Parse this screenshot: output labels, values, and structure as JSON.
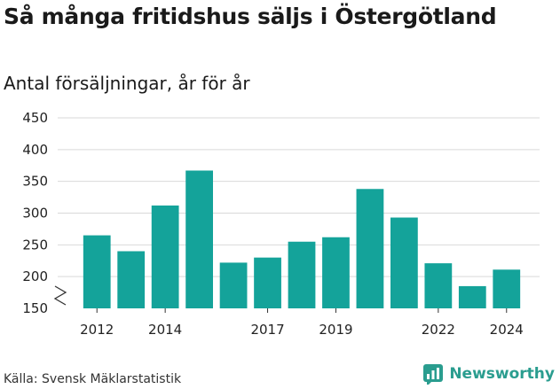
{
  "title": "Så många fritidshus säljs i Östergötland",
  "subtitle": "Antal försäljningar, år för år",
  "source": "Källa: Svensk Mäklarstatistik",
  "brand": {
    "name": "Newsworthy",
    "logo_icon": "newsworthy-chart-logo-icon",
    "color": "#2a9d8f"
  },
  "chart_data": {
    "type": "bar",
    "categories": [
      "2012",
      "2013",
      "2014",
      "2015",
      "2016",
      "2017",
      "2018",
      "2019",
      "2020",
      "2021",
      "2022",
      "2023",
      "2024"
    ],
    "values": [
      265,
      240,
      312,
      367,
      222,
      230,
      255,
      262,
      338,
      293,
      221,
      185,
      211
    ],
    "xticks": [
      "2012",
      "2014",
      "2017",
      "2019",
      "2022",
      "2024"
    ],
    "yticks": [
      150,
      200,
      250,
      300,
      350,
      400,
      450
    ],
    "ylim": [
      150,
      450
    ],
    "axis_break": true,
    "bar_color": "#14a39a",
    "grid": true,
    "title": "Så många fritidshus säljs i Östergötland",
    "ylabel": "Antal försäljningar, år för år",
    "xlabel": ""
  }
}
